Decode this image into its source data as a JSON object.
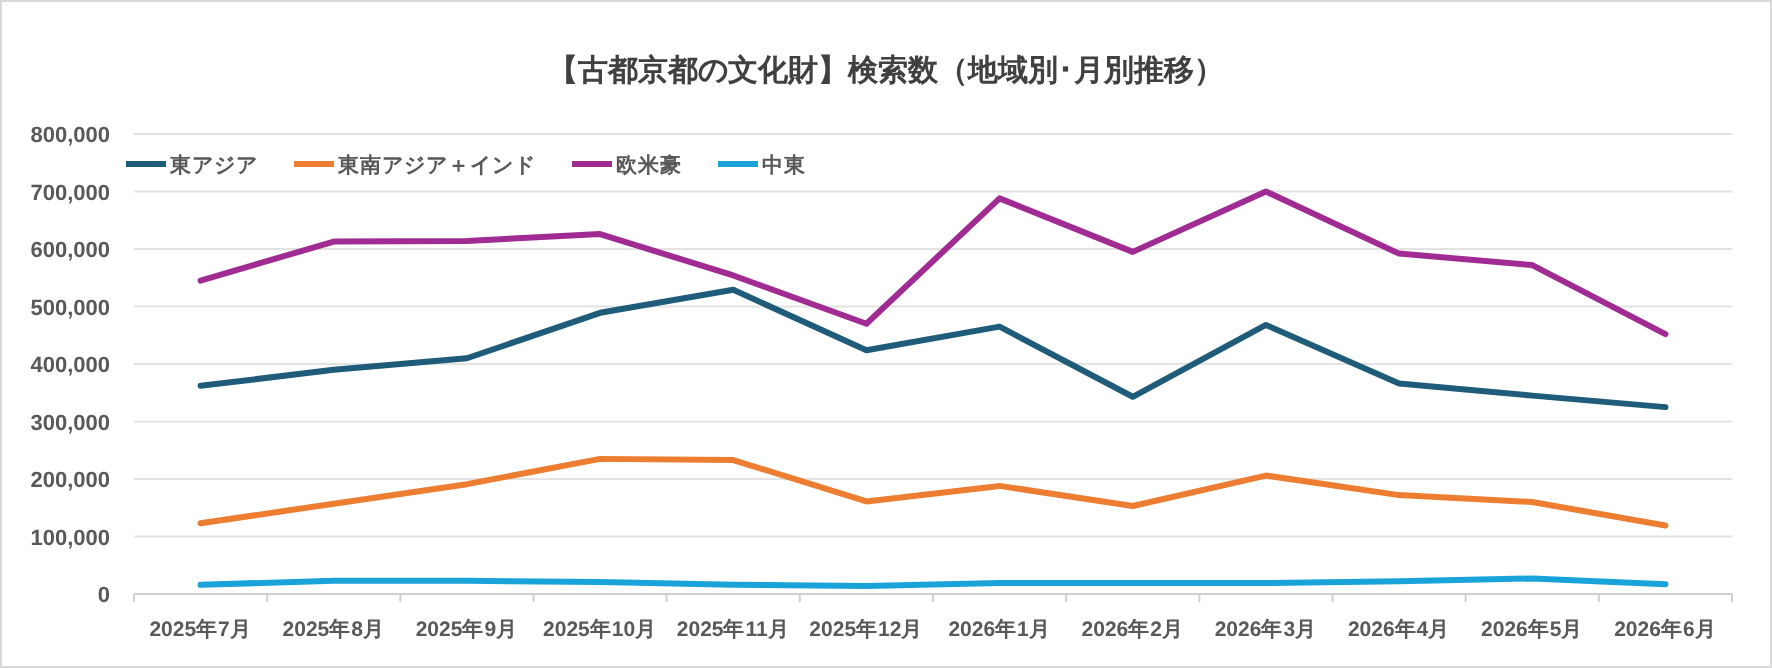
{
  "chart_data": {
    "type": "line",
    "title": "【古都京都の文化財】検索数（地域別･月別推移）",
    "categories": [
      "2025年7月",
      "2025年8月",
      "2025年9月",
      "2025年10月",
      "2025年11月",
      "2025年12月",
      "2026年1月",
      "2026年2月",
      "2026年3月",
      "2026年4月",
      "2026年5月",
      "2026年6月"
    ],
    "series": [
      {
        "name": "東アジア",
        "color": "#1f5c7a",
        "values": [
          362000,
          390000,
          410000,
          489000,
          529000,
          424000,
          465000,
          343000,
          468000,
          366000,
          345000,
          325000
        ]
      },
      {
        "name": "東南アジア＋インド",
        "color": "#ed7d31",
        "values": [
          123000,
          157000,
          191000,
          235000,
          233000,
          161000,
          188000,
          153000,
          206000,
          172000,
          160000,
          119000
        ]
      },
      {
        "name": "欧米豪",
        "color": "#a02b93",
        "values": [
          545000,
          613000,
          614000,
          626000,
          554000,
          470000,
          688000,
          595000,
          700000,
          592000,
          572000,
          452000
        ]
      },
      {
        "name": "中東",
        "color": "#1aa3d9",
        "values": [
          16000,
          23000,
          23000,
          21000,
          16000,
          14000,
          19000,
          19000,
          19000,
          22000,
          27000,
          17000
        ]
      }
    ],
    "ylim": [
      0,
      800000
    ],
    "yticks": [
      {
        "value": 0,
        "label": "0"
      },
      {
        "value": 100000,
        "label": "100,000"
      },
      {
        "value": 200000,
        "label": "200,000"
      },
      {
        "value": 300000,
        "label": "300,000"
      },
      {
        "value": 400000,
        "label": "400,000"
      },
      {
        "value": 500000,
        "label": "500,000"
      },
      {
        "value": 600000,
        "label": "600,000"
      },
      {
        "value": 700000,
        "label": "700,000"
      },
      {
        "value": 800000,
        "label": "800,000"
      }
    ],
    "grid": "y",
    "legend": "top left",
    "marker": "none",
    "line_style": "solid"
  }
}
